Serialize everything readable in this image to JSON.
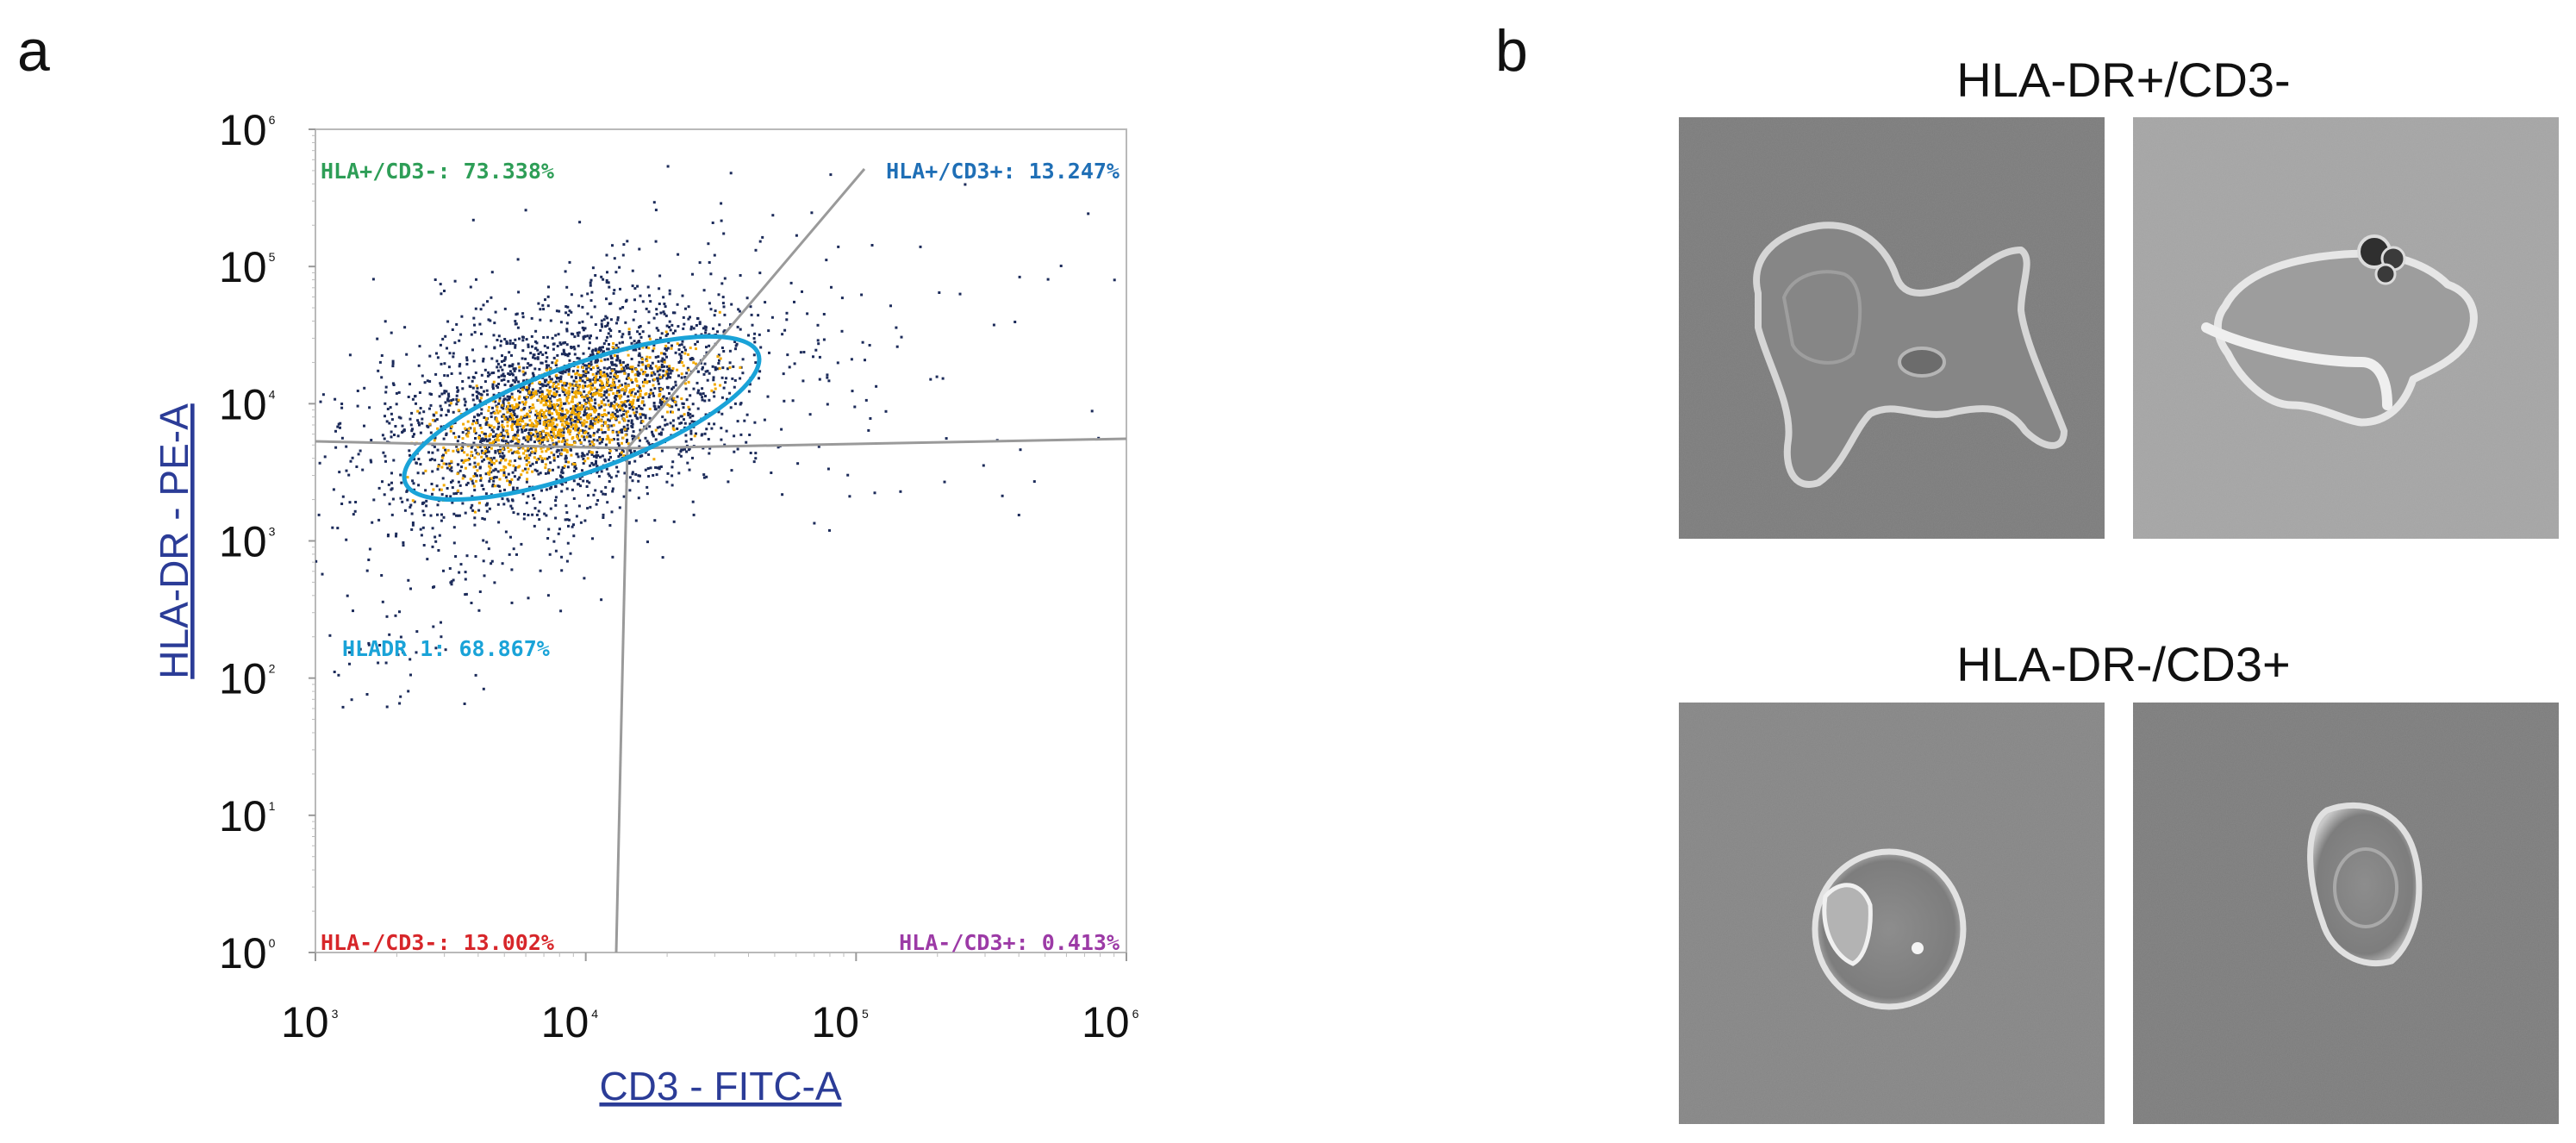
{
  "figure": {
    "panel_a_label": "a",
    "panel_b_label": "b"
  },
  "chart_data": {
    "type": "scatter",
    "xlabel": "CD3 - FITC-A",
    "ylabel": "HLA-DR - PE-A",
    "xscale": "log",
    "yscale": "log",
    "xlim": [
      1000,
      1000000
    ],
    "ylim": [
      1,
      1000000
    ],
    "x_ticks": [
      {
        "base": "10",
        "exp": "3",
        "value": 1000
      },
      {
        "base": "10",
        "exp": "4",
        "value": 10000
      },
      {
        "base": "10",
        "exp": "5",
        "value": 100000
      },
      {
        "base": "10",
        "exp": "6",
        "value": 1000000
      }
    ],
    "y_ticks": [
      {
        "base": "10",
        "exp": "0",
        "value": 1
      },
      {
        "base": "10",
        "exp": "1",
        "value": 10
      },
      {
        "base": "10",
        "exp": "2",
        "value": 100
      },
      {
        "base": "10",
        "exp": "3",
        "value": 1000
      },
      {
        "base": "10",
        "exp": "4",
        "value": 10000
      },
      {
        "base": "10",
        "exp": "5",
        "value": 100000
      },
      {
        "base": "10",
        "exp": "6",
        "value": 1000000
      }
    ],
    "quadrant_labels": [
      {
        "text": "HLA+/CD3-: 73.338%",
        "color": "#2e9e57"
      },
      {
        "text": "HLA+/CD3+: 13.247%",
        "color": "#1f6fb6"
      },
      {
        "text": "HLA-/CD3-: 13.002%",
        "color": "#d7262a"
      },
      {
        "text": "HLA-/CD3+: 0.413%",
        "color": "#9c3aa6"
      }
    ],
    "gate": {
      "text": "HLADR 1: 68.867%",
      "color": "#1aa3d8"
    },
    "dot_color": "#1c2b5a",
    "dense_color": "#f2a900",
    "gridlines": false
  },
  "microscopy": {
    "group1_title": "HLA-DR+/CD3-",
    "group2_title": "HLA-DR-/CD3+"
  }
}
